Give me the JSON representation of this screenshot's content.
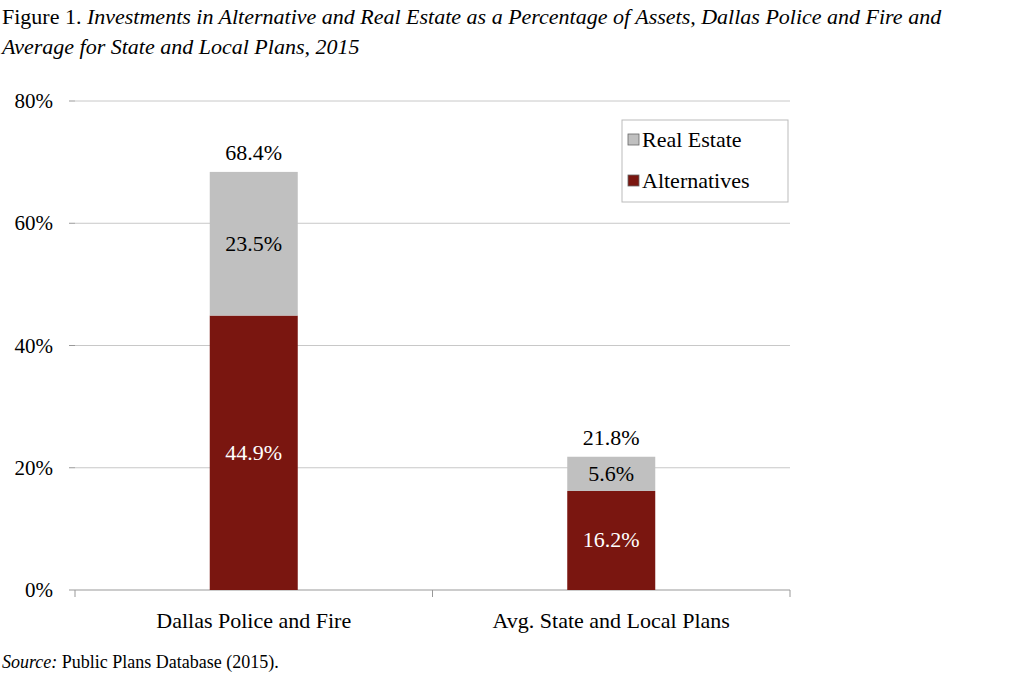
{
  "chart_data": {
    "type": "bar",
    "stacked": true,
    "title": "Figure 1. Investments in Alternative and Real Estate as a Percentage of Assets, Dallas Police and Fire and Average for State and Local Plans, 2015",
    "source": "Source: Public Plans Database (2015).",
    "categories": [
      "Dallas Police and Fire",
      "Avg. State and Local Plans"
    ],
    "series": [
      {
        "name": "Alternatives",
        "color": "#7a1610",
        "values": [
          44.9,
          16.2
        ],
        "value_labels": [
          "44.9%",
          "16.2%"
        ]
      },
      {
        "name": "Real Estate",
        "color": "#c0c0c0",
        "values": [
          23.5,
          5.6
        ],
        "value_labels": [
          "23.5%",
          "5.6%"
        ]
      }
    ],
    "totals": [
      68.4,
      21.8
    ],
    "total_labels": [
      "68.4%",
      "21.8%"
    ],
    "ylim": [
      0,
      80
    ],
    "yticks": [
      {
        "value": 0,
        "label": "0%"
      },
      {
        "value": 20,
        "label": "20%"
      },
      {
        "value": 40,
        "label": "40%"
      },
      {
        "value": 60,
        "label": "60%"
      },
      {
        "value": 80,
        "label": "80%"
      }
    ],
    "grid": true,
    "legend": "top-right",
    "data_labels": true
  }
}
